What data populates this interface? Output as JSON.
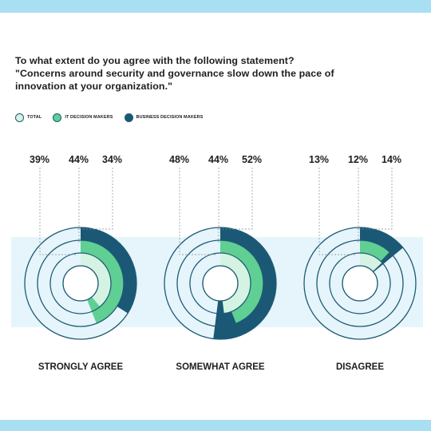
{
  "question": {
    "line1": "To what extent do you agree with the following statement?",
    "line2": "\"Concerns around security and governance slow down the pace of",
    "line3": "innovation at your organization.\""
  },
  "colors": {
    "band": "#a9dff2",
    "ring_track": "#e5f5fb",
    "outline": "#1f5a73",
    "total": "#d5f3e3",
    "it": "#5fcf93",
    "business": "#1b5875"
  },
  "chart_data": {
    "type": "radial-donut",
    "legend_position": "top-left",
    "categories": [
      "STRONGLY AGREE",
      "SOMEWHAT AGREE",
      "DISAGREE"
    ],
    "series": [
      {
        "name": "TOTAL",
        "values": [
          39,
          48,
          13
        ],
        "labels": [
          "39%",
          "48%",
          "13%"
        ]
      },
      {
        "name": "IT DECISION MAKERS",
        "values": [
          44,
          44,
          12
        ],
        "labels": [
          "44%",
          "44%",
          "12%"
        ]
      },
      {
        "name": "BUSINESS DECISION MAKERS",
        "values": [
          34,
          52,
          14
        ],
        "labels": [
          "34%",
          "52%",
          "14%"
        ]
      }
    ]
  }
}
